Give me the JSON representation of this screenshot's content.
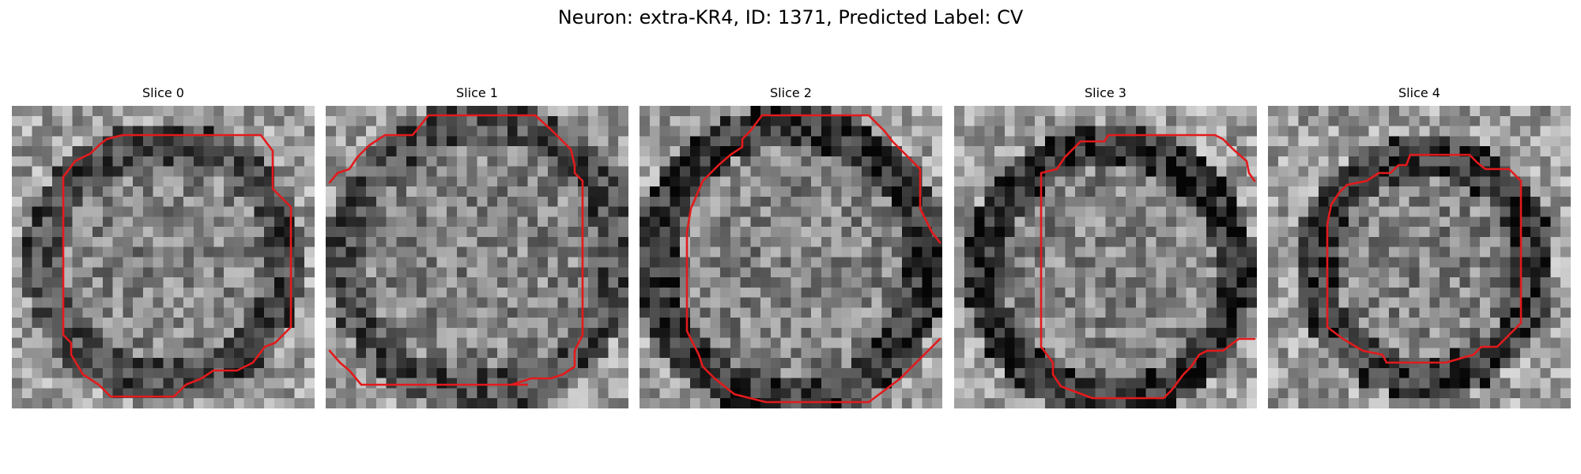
{
  "figure": {
    "title": "Neuron: extra-KR4, ID: 1371, Predicted Label: CV",
    "contour_color": "#e31a1c",
    "colormap": "grayscale",
    "grid_size": 30
  },
  "slices": [
    {
      "label": "Slice 0"
    },
    {
      "label": "Slice 1"
    },
    {
      "label": "Slice 2"
    },
    {
      "label": "Slice 3"
    },
    {
      "label": "Slice 4"
    }
  ]
}
